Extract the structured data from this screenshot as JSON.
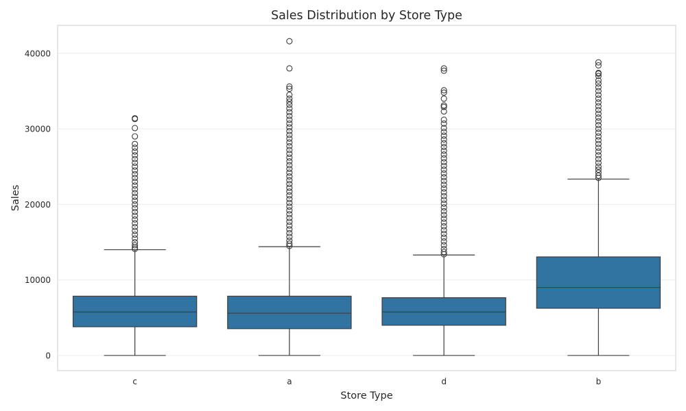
{
  "chart_data": {
    "type": "box",
    "title": "Sales Distribution by Store Type",
    "xlabel": "Store Type",
    "ylabel": "Sales",
    "categories": [
      "c",
      "a",
      "d",
      "b"
    ],
    "ylim": [
      -2000,
      43700
    ],
    "yticks": [
      0,
      10000,
      20000,
      30000,
      40000
    ],
    "grid": true,
    "box_color": "#3274a1",
    "edge_color": "#3d3d3d",
    "boxes": [
      {
        "category": "c",
        "whislo": 0,
        "q1": 3800,
        "median": 5750,
        "q3": 7850,
        "whishi": 14000,
        "outliers": [
          14100,
          14300,
          14600,
          15000,
          15500,
          16000,
          16500,
          17000,
          17500,
          18000,
          18500,
          19000,
          19500,
          20000,
          20500,
          21000,
          21500,
          22000,
          22500,
          23000,
          23500,
          24000,
          24500,
          25000,
          25500,
          26000,
          26500,
          27000,
          27500,
          28000,
          29000,
          30100,
          31300,
          31400
        ]
      },
      {
        "category": "a",
        "whislo": 0,
        "q1": 3550,
        "median": 5600,
        "q3": 7850,
        "whishi": 14400,
        "outliers": [
          14500,
          14800,
          15200,
          15700,
          16200,
          16700,
          17200,
          17700,
          18200,
          18700,
          19200,
          19700,
          20200,
          20700,
          21200,
          21700,
          22200,
          22700,
          23200,
          23700,
          24200,
          24700,
          25200,
          25700,
          26200,
          26700,
          27200,
          27700,
          28200,
          28700,
          29200,
          29700,
          30200,
          30700,
          31200,
          31700,
          32200,
          32700,
          33200,
          33600,
          34000,
          34500,
          35300,
          35600,
          38000,
          41600
        ]
      },
      {
        "category": "d",
        "whislo": 0,
        "q1": 4000,
        "median": 5750,
        "q3": 7650,
        "whishi": 13300,
        "outliers": [
          13400,
          13700,
          14100,
          14600,
          15100,
          15600,
          16100,
          16600,
          17100,
          17600,
          18100,
          18600,
          19100,
          19600,
          20100,
          20600,
          21100,
          21600,
          22100,
          22600,
          23100,
          23600,
          24100,
          24600,
          25100,
          25600,
          26100,
          26600,
          27100,
          27600,
          28100,
          28600,
          29100,
          29600,
          30100,
          30700,
          31200,
          32300,
          32900,
          33100,
          34000,
          34800,
          35100,
          37700,
          38000
        ]
      },
      {
        "category": "b",
        "whislo": 0,
        "q1": 6250,
        "median": 9000,
        "q3": 13050,
        "whishi": 23350,
        "outliers": [
          23500,
          23800,
          24200,
          24600,
          25000,
          25500,
          26000,
          26500,
          27000,
          27500,
          28000,
          28500,
          29000,
          29500,
          30000,
          30500,
          31000,
          31500,
          32000,
          32500,
          33000,
          33500,
          34000,
          34500,
          35000,
          35500,
          36000,
          36400,
          37000,
          37300,
          37400,
          38400,
          38800
        ]
      }
    ]
  }
}
